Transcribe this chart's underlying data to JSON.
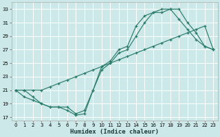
{
  "xlabel": "Humidex (Indice chaleur)",
  "bg_color": "#cce8e8",
  "grid_color": "#b8d8d8",
  "line_color": "#2a7b6b",
  "xlim": [
    -0.5,
    23.5
  ],
  "ylim": [
    16.5,
    34.0
  ],
  "xticks": [
    0,
    1,
    2,
    3,
    4,
    5,
    6,
    7,
    8,
    9,
    10,
    11,
    12,
    13,
    14,
    15,
    16,
    17,
    18,
    19,
    20,
    21,
    22,
    23
  ],
  "yticks": [
    17,
    19,
    21,
    23,
    25,
    27,
    29,
    31,
    33
  ],
  "curve1_x": [
    0,
    1,
    2,
    3,
    4,
    5,
    6,
    7,
    8,
    9,
    10,
    11,
    12,
    13,
    14,
    15,
    16,
    17,
    18,
    19,
    20,
    21,
    22,
    23
  ],
  "curve1_y": [
    21,
    21,
    20,
    19,
    18.5,
    18.5,
    18.5,
    17.5,
    18,
    21,
    24,
    25,
    26.5,
    27,
    29,
    31,
    32.5,
    32.5,
    33,
    33,
    31,
    29.5,
    27.5,
    27
  ],
  "curve2_x": [
    0,
    1,
    2,
    3,
    4,
    5,
    6,
    7,
    8,
    9,
    10,
    11,
    12,
    13,
    14,
    15,
    16,
    17,
    18,
    19,
    20,
    21,
    22,
    23
  ],
  "curve2_y": [
    21,
    21,
    21,
    21,
    21.5,
    22,
    22.5,
    23,
    23.5,
    24,
    24.5,
    25,
    25.5,
    26,
    26.5,
    27,
    27.5,
    28,
    28.5,
    29,
    29.5,
    30,
    30.5,
    27
  ],
  "curve3_x": [
    0,
    1,
    2,
    3,
    4,
    5,
    6,
    7,
    8,
    9,
    10,
    11,
    12,
    13,
    14,
    15,
    16,
    17,
    18,
    19,
    20,
    21,
    22,
    23
  ],
  "curve3_y": [
    21,
    20,
    19.5,
    19,
    18.5,
    18.5,
    18,
    17.3,
    17.5,
    21,
    24.5,
    25.3,
    27,
    27.5,
    30.5,
    32,
    32.5,
    33,
    33,
    31.5,
    30,
    28.5,
    27.5,
    27
  ]
}
